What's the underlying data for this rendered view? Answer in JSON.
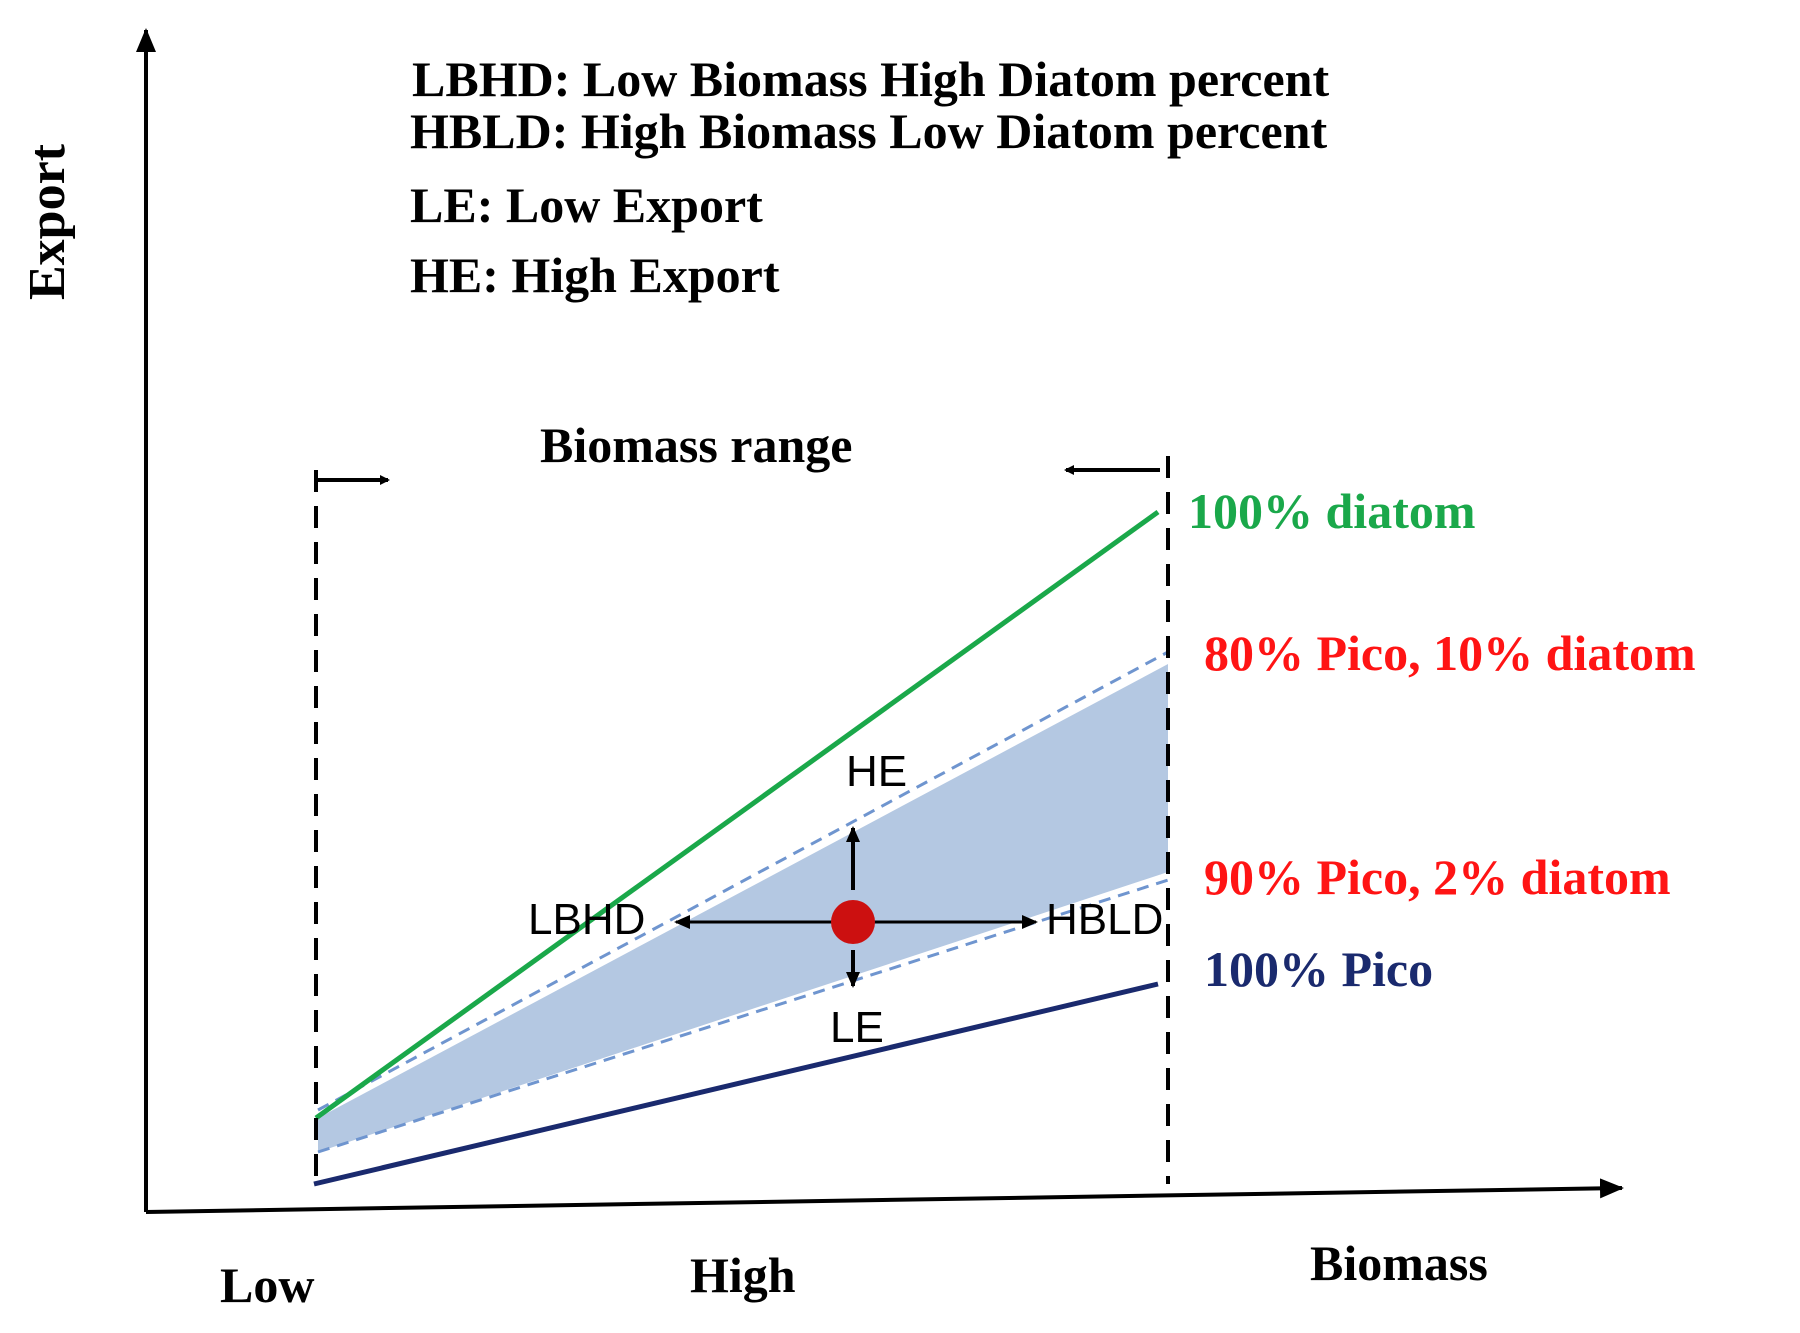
{
  "legend": {
    "lbhd": "LBHD: Low Biomass High Diatom percent",
    "hbld": "HBLD: High Biomass Low Diatom percent",
    "le": "LE: Low Export",
    "he": "HE: High Export"
  },
  "axes": {
    "y_label": "Export",
    "x_label": "Biomass",
    "x_tick_low": "Low",
    "x_tick_high": "High"
  },
  "range": {
    "label": "Biomass range"
  },
  "lines": {
    "diatom100": {
      "label": "100% diatom",
      "color": "#1aa84a"
    },
    "pico80": {
      "label": "80% Pico, 10% diatom",
      "color": "#ff1414"
    },
    "pico90": {
      "label": "90% Pico, 2% diatom",
      "color": "#ff1414"
    },
    "pico100": {
      "label": "100% Pico",
      "color": "#1a2a6e"
    }
  },
  "markers": {
    "he": "HE",
    "le": "LE",
    "lbhd": "LBHD",
    "hbld": "HBLD"
  },
  "colors": {
    "shade": "#b4c8e2",
    "dashed_line": "#6f95cf",
    "point": "#cc1010",
    "axis": "#000000"
  }
}
